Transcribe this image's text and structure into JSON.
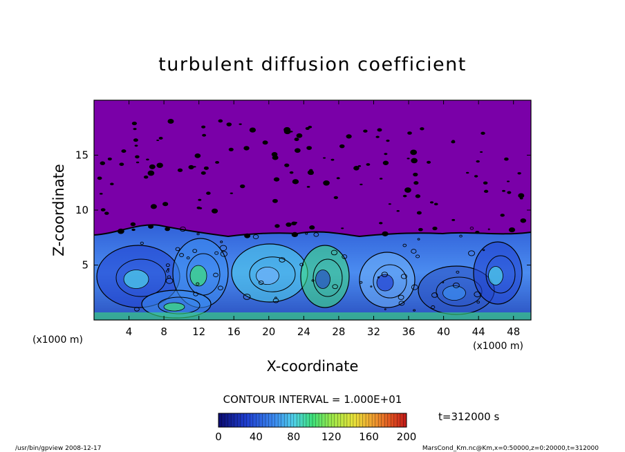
{
  "chart_data": {
    "type": "heatmap",
    "title": "turbulent diffusion coefficient",
    "xlabel": "X-coordinate",
    "ylabel": "Z-coordinate",
    "x_unit_left": "(x1000 m)",
    "x_unit_right": "(x1000 m)",
    "xlim": [
      0,
      50
    ],
    "ylim": [
      0,
      20
    ],
    "x_ticks": [
      4,
      8,
      12,
      16,
      20,
      24,
      28,
      32,
      36,
      40,
      44,
      48
    ],
    "y_ticks": [
      5,
      10,
      15
    ],
    "contour_interval_label": "CONTOUR INTERVAL = 1.000E+01",
    "time_label": "t=312000 s",
    "colorbar": {
      "range": [
        0,
        200
      ],
      "ticks": [
        0,
        40,
        80,
        120,
        160,
        200
      ],
      "colors": [
        "#0a0a6e",
        "#1f3fd0",
        "#3c8cf0",
        "#4fd0e8",
        "#3ee07a",
        "#9be84a",
        "#e8e23a",
        "#f0a030",
        "#e05020",
        "#c01818"
      ]
    },
    "colors": {
      "upper_region": "#7a00a8",
      "lower_region": "#4b8cf0"
    },
    "footer_left": "/usr/bin/gpview  2008-12-17",
    "footer_right": "MarsCond_Km.nc@Km,x=0:50000,z=0:20000,t=312000"
  }
}
